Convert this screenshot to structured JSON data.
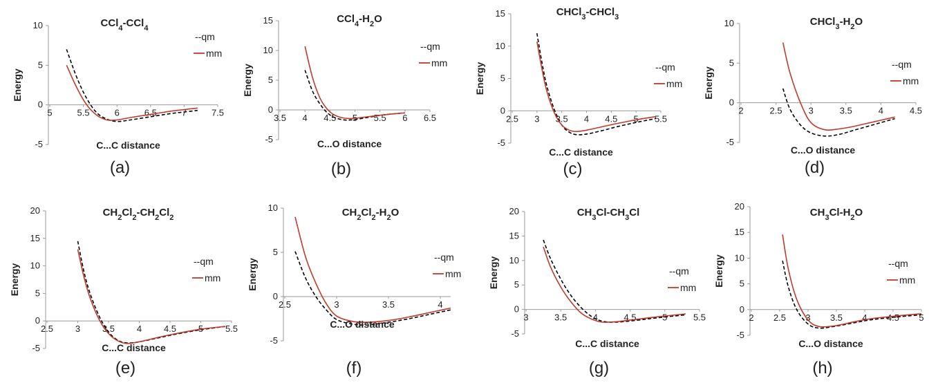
{
  "colors": {
    "qm": "#000000",
    "mm": "#c0392b",
    "axis": "#9a9a9a"
  },
  "chart_data": [
    {
      "type": "line",
      "panel": "(a)",
      "title": {
        "main": "CCl",
        "parts": [
          [
            "CCl",
            ""
          ],
          [
            "4",
            "sub"
          ],
          [
            "-CCl",
            ""
          ],
          [
            "4",
            "sub"
          ]
        ]
      },
      "xlabel": "C...C distance",
      "ylabel": "Energy",
      "xlim": [
        5,
        7.5
      ],
      "ylim": [
        -5,
        10
      ],
      "xticks": [
        "5",
        "5.5",
        "6",
        "6.5",
        "7",
        "7.5"
      ],
      "yticks": [
        "-5",
        "0",
        "5",
        "10"
      ],
      "legend": [
        "--qm",
        "mm"
      ],
      "series": [
        {
          "name": "qm",
          "style": "dashed",
          "x": [
            5.25,
            5.4,
            5.55,
            5.7,
            5.85,
            6.0,
            6.2,
            6.5,
            6.8,
            7.0,
            7.2
          ],
          "y": [
            7.0,
            3.5,
            0.8,
            -1.0,
            -1.8,
            -2.1,
            -1.9,
            -1.5,
            -1.1,
            -0.9,
            -0.7
          ]
        },
        {
          "name": "mm",
          "style": "solid",
          "x": [
            5.25,
            5.4,
            5.55,
            5.7,
            5.85,
            6.0,
            6.2,
            6.5,
            6.8,
            7.0,
            7.2
          ],
          "y": [
            5.0,
            2.2,
            0.0,
            -1.3,
            -1.9,
            -1.9,
            -1.6,
            -1.2,
            -0.8,
            -0.6,
            -0.4
          ]
        }
      ]
    },
    {
      "type": "line",
      "panel": "(b)",
      "title": {
        "parts": [
          [
            "CCl",
            ""
          ],
          [
            "4",
            "sub"
          ],
          [
            "-H",
            ""
          ],
          [
            "2",
            "sub"
          ],
          [
            "O",
            ""
          ]
        ]
      },
      "xlabel": "C...O distance",
      "ylabel": "Energy",
      "xlim": [
        3.5,
        6.5
      ],
      "ylim": [
        -5,
        15
      ],
      "xticks": [
        "3.5",
        "4",
        "4.5",
        "5",
        "5.5",
        "6",
        "6.5"
      ],
      "yticks": [
        "-5",
        "0",
        "5",
        "10",
        "15"
      ],
      "legend": [
        "--qm",
        "mm"
      ],
      "series": [
        {
          "name": "qm",
          "style": "dashed",
          "x": [
            4.0,
            4.15,
            4.3,
            4.45,
            4.6,
            4.8,
            5.0,
            5.3,
            5.6,
            6.0
          ],
          "y": [
            6.7,
            3.2,
            1.0,
            -0.5,
            -1.3,
            -1.7,
            -1.6,
            -1.2,
            -0.8,
            -0.5
          ]
        },
        {
          "name": "mm",
          "style": "solid",
          "x": [
            4.0,
            4.15,
            4.3,
            4.45,
            4.6,
            4.8,
            5.0,
            5.3,
            5.6,
            6.0
          ],
          "y": [
            10.7,
            5.5,
            2.0,
            0.1,
            -0.9,
            -1.4,
            -1.4,
            -1.1,
            -0.8,
            -0.5
          ]
        }
      ]
    },
    {
      "type": "line",
      "panel": "(c)",
      "title": {
        "parts": [
          [
            "CHCl",
            ""
          ],
          [
            "3",
            "sub"
          ],
          [
            "-CHCl",
            ""
          ],
          [
            "3",
            "sub"
          ]
        ]
      },
      "xlabel": "C...C distance",
      "ylabel": "Energy",
      "xlim": [
        2.5,
        5.5
      ],
      "ylim": [
        -5,
        15
      ],
      "xticks": [
        "2.5",
        "3",
        "3.5",
        "4",
        "4.5",
        "5",
        "5.5"
      ],
      "yticks": [
        "-5",
        "0",
        "5",
        "10",
        "15"
      ],
      "legend": [
        "--qm",
        "mm"
      ],
      "series": [
        {
          "name": "qm",
          "style": "dashed",
          "x": [
            3.0,
            3.1,
            3.2,
            3.35,
            3.5,
            3.65,
            3.8,
            4.0,
            4.3,
            4.6,
            5.0,
            5.4
          ],
          "y": [
            12.0,
            7.5,
            3.8,
            0.2,
            -2.2,
            -3.3,
            -3.7,
            -3.6,
            -3.1,
            -2.5,
            -1.8,
            -1.2
          ]
        },
        {
          "name": "mm",
          "style": "solid",
          "x": [
            3.0,
            3.1,
            3.2,
            3.35,
            3.5,
            3.65,
            3.8,
            4.0,
            4.3,
            4.6,
            5.0,
            5.4
          ],
          "y": [
            10.7,
            6.5,
            3.0,
            -0.3,
            -2.2,
            -3.0,
            -3.2,
            -3.0,
            -2.5,
            -2.0,
            -1.4,
            -0.9
          ]
        }
      ]
    },
    {
      "type": "line",
      "panel": "(d)",
      "title": {
        "parts": [
          [
            "CHCl",
            ""
          ],
          [
            "3",
            "sub"
          ],
          [
            "-H",
            ""
          ],
          [
            "2",
            "sub"
          ],
          [
            "O",
            ""
          ]
        ]
      },
      "xlabel": "C...O distance",
      "ylabel": "Energy",
      "xlim": [
        2,
        4.5
      ],
      "ylim": [
        -5,
        10
      ],
      "xticks": [
        "2",
        "2.5",
        "3",
        "3.5",
        "4",
        "4.5"
      ],
      "yticks": [
        "-5",
        "0",
        "5",
        "10"
      ],
      "legend": [
        "--qm",
        "mm"
      ],
      "series": [
        {
          "name": "qm",
          "style": "dashed",
          "x": [
            2.6,
            2.7,
            2.85,
            3.0,
            3.2,
            3.4,
            3.6,
            3.8,
            4.0,
            4.2
          ],
          "y": [
            1.8,
            -0.8,
            -2.8,
            -3.8,
            -4.2,
            -4.0,
            -3.5,
            -3.0,
            -2.5,
            -2.0
          ]
        },
        {
          "name": "mm",
          "style": "solid",
          "x": [
            2.6,
            2.7,
            2.85,
            3.0,
            3.2,
            3.4,
            3.6,
            3.8,
            4.0,
            4.2
          ],
          "y": [
            7.6,
            3.8,
            0.0,
            -2.5,
            -3.4,
            -3.3,
            -3.0,
            -2.6,
            -2.2,
            -1.8
          ]
        }
      ]
    },
    {
      "type": "line",
      "panel": "(e)",
      "title": {
        "parts": [
          [
            "CH",
            ""
          ],
          [
            "2",
            "sub"
          ],
          [
            "Cl",
            ""
          ],
          [
            "2",
            "sub"
          ],
          [
            "-CH",
            ""
          ],
          [
            "2",
            "sub"
          ],
          [
            "Cl",
            ""
          ],
          [
            "2",
            "sub"
          ]
        ]
      },
      "xlabel": "C...C distance",
      "ylabel": "Energy",
      "xlim": [
        2.5,
        5.5
      ],
      "ylim": [
        -5,
        20
      ],
      "xticks": [
        "2.5",
        "3",
        "3.5",
        "4",
        "4.5",
        "5",
        "5.5"
      ],
      "yticks": [
        "-5",
        "0",
        "5",
        "10",
        "15",
        "20"
      ],
      "legend": [
        "--qm",
        "mm"
      ],
      "series": [
        {
          "name": "qm",
          "style": "dashed",
          "x": [
            3.0,
            3.1,
            3.2,
            3.35,
            3.5,
            3.65,
            3.8,
            4.0,
            4.3,
            4.6,
            5.0,
            5.4
          ],
          "y": [
            14.5,
            9.0,
            5.0,
            0.8,
            -2.0,
            -3.5,
            -4.0,
            -3.8,
            -3.1,
            -2.4,
            -1.6,
            -1.0
          ]
        },
        {
          "name": "mm",
          "style": "solid",
          "x": [
            3.0,
            3.1,
            3.2,
            3.35,
            3.5,
            3.65,
            3.8,
            4.0,
            4.3,
            4.6,
            5.0,
            5.4
          ],
          "y": [
            13.0,
            8.0,
            4.2,
            0.2,
            -2.3,
            -3.6,
            -4.1,
            -3.8,
            -3.0,
            -2.3,
            -1.5,
            -1.0
          ]
        }
      ]
    },
    {
      "type": "line",
      "panel": "(f)",
      "title": {
        "parts": [
          [
            "CH",
            ""
          ],
          [
            "2",
            "sub"
          ],
          [
            "Cl",
            ""
          ],
          [
            "2",
            "sub"
          ],
          [
            "-H",
            ""
          ],
          [
            "2",
            "sub"
          ],
          [
            "O",
            ""
          ]
        ]
      },
      "xlabel": "C...O distance",
      "ylabel": "Energy",
      "xlim": [
        2.5,
        4.1
      ],
      "ylim": [
        -5,
        10
      ],
      "xticks": [
        "2.5",
        "3",
        "3.5",
        "4"
      ],
      "yticks": [
        "-5",
        "0",
        "5",
        "10"
      ],
      "legend": [
        "--qm",
        "mm"
      ],
      "series": [
        {
          "name": "qm",
          "style": "dashed",
          "x": [
            2.6,
            2.7,
            2.8,
            2.9,
            3.0,
            3.15,
            3.3,
            3.5,
            3.7,
            3.9,
            4.1
          ],
          "y": [
            5.1,
            2.1,
            0.0,
            -1.5,
            -2.6,
            -3.1,
            -3.2,
            -2.9,
            -2.5,
            -2.0,
            -1.5
          ]
        },
        {
          "name": "mm",
          "style": "solid",
          "x": [
            2.6,
            2.7,
            2.8,
            2.9,
            3.0,
            3.15,
            3.3,
            3.5,
            3.7,
            3.9,
            4.1
          ],
          "y": [
            9.0,
            4.5,
            1.5,
            -0.8,
            -2.2,
            -2.8,
            -2.9,
            -2.7,
            -2.3,
            -1.8,
            -1.3
          ]
        }
      ]
    },
    {
      "type": "line",
      "panel": "(g)",
      "title": {
        "parts": [
          [
            "CH",
            ""
          ],
          [
            "3",
            "sub"
          ],
          [
            "Cl-CH",
            ""
          ],
          [
            "3",
            "sub"
          ],
          [
            "Cl",
            ""
          ]
        ]
      },
      "xlabel": "C...C distance",
      "ylabel": "Energy",
      "xlim": [
        3,
        5.5
      ],
      "ylim": [
        -5,
        20
      ],
      "xticks": [
        "3",
        "3.5",
        "4",
        "4.5",
        "5",
        "5.5"
      ],
      "yticks": [
        "-5",
        "0",
        "5",
        "10",
        "15",
        "20"
      ],
      "legend": [
        "--qm",
        "mm"
      ],
      "series": [
        {
          "name": "qm",
          "style": "dashed",
          "x": [
            3.25,
            3.35,
            3.5,
            3.65,
            3.8,
            3.95,
            4.1,
            4.3,
            4.6,
            4.9,
            5.3
          ],
          "y": [
            14.2,
            10.5,
            6.2,
            2.8,
            0.3,
            -1.5,
            -2.4,
            -2.6,
            -2.2,
            -1.7,
            -1.1
          ]
        },
        {
          "name": "mm",
          "style": "solid",
          "x": [
            3.25,
            3.35,
            3.5,
            3.65,
            3.8,
            3.95,
            4.1,
            4.3,
            4.6,
            4.9,
            5.3
          ],
          "y": [
            12.8,
            8.8,
            4.6,
            1.5,
            -0.8,
            -2.0,
            -2.6,
            -2.5,
            -2.0,
            -1.5,
            -0.9
          ]
        }
      ]
    },
    {
      "type": "line",
      "panel": "(h)",
      "title": {
        "parts": [
          [
            "CH",
            ""
          ],
          [
            "3",
            "sub"
          ],
          [
            "Cl-H",
            ""
          ],
          [
            "2",
            "sub"
          ],
          [
            "O",
            ""
          ]
        ]
      },
      "xlabel": "C...O distance",
      "ylabel": "Energy",
      "xlim": [
        2,
        5
      ],
      "ylim": [
        -5,
        20
      ],
      "xticks": [
        "2",
        "2.5",
        "3",
        "3.5",
        "4",
        "4.5",
        "5"
      ],
      "yticks": [
        "-5",
        "0",
        "5",
        "10",
        "15",
        "20"
      ],
      "legend": [
        "--qm",
        "mm"
      ],
      "series": [
        {
          "name": "qm",
          "style": "dashed",
          "x": [
            2.55,
            2.65,
            2.8,
            3.0,
            3.2,
            3.5,
            3.8,
            4.1,
            4.5,
            5.0
          ],
          "y": [
            9.5,
            4.5,
            0.0,
            -2.8,
            -3.6,
            -3.2,
            -2.6,
            -2.0,
            -1.5,
            -1.0
          ]
        },
        {
          "name": "mm",
          "style": "solid",
          "x": [
            2.55,
            2.65,
            2.8,
            3.0,
            3.2,
            3.5,
            3.8,
            4.1,
            4.5,
            5.0
          ],
          "y": [
            14.6,
            8.0,
            2.0,
            -2.0,
            -3.3,
            -3.1,
            -2.4,
            -1.8,
            -1.3,
            -0.8
          ]
        }
      ]
    }
  ]
}
